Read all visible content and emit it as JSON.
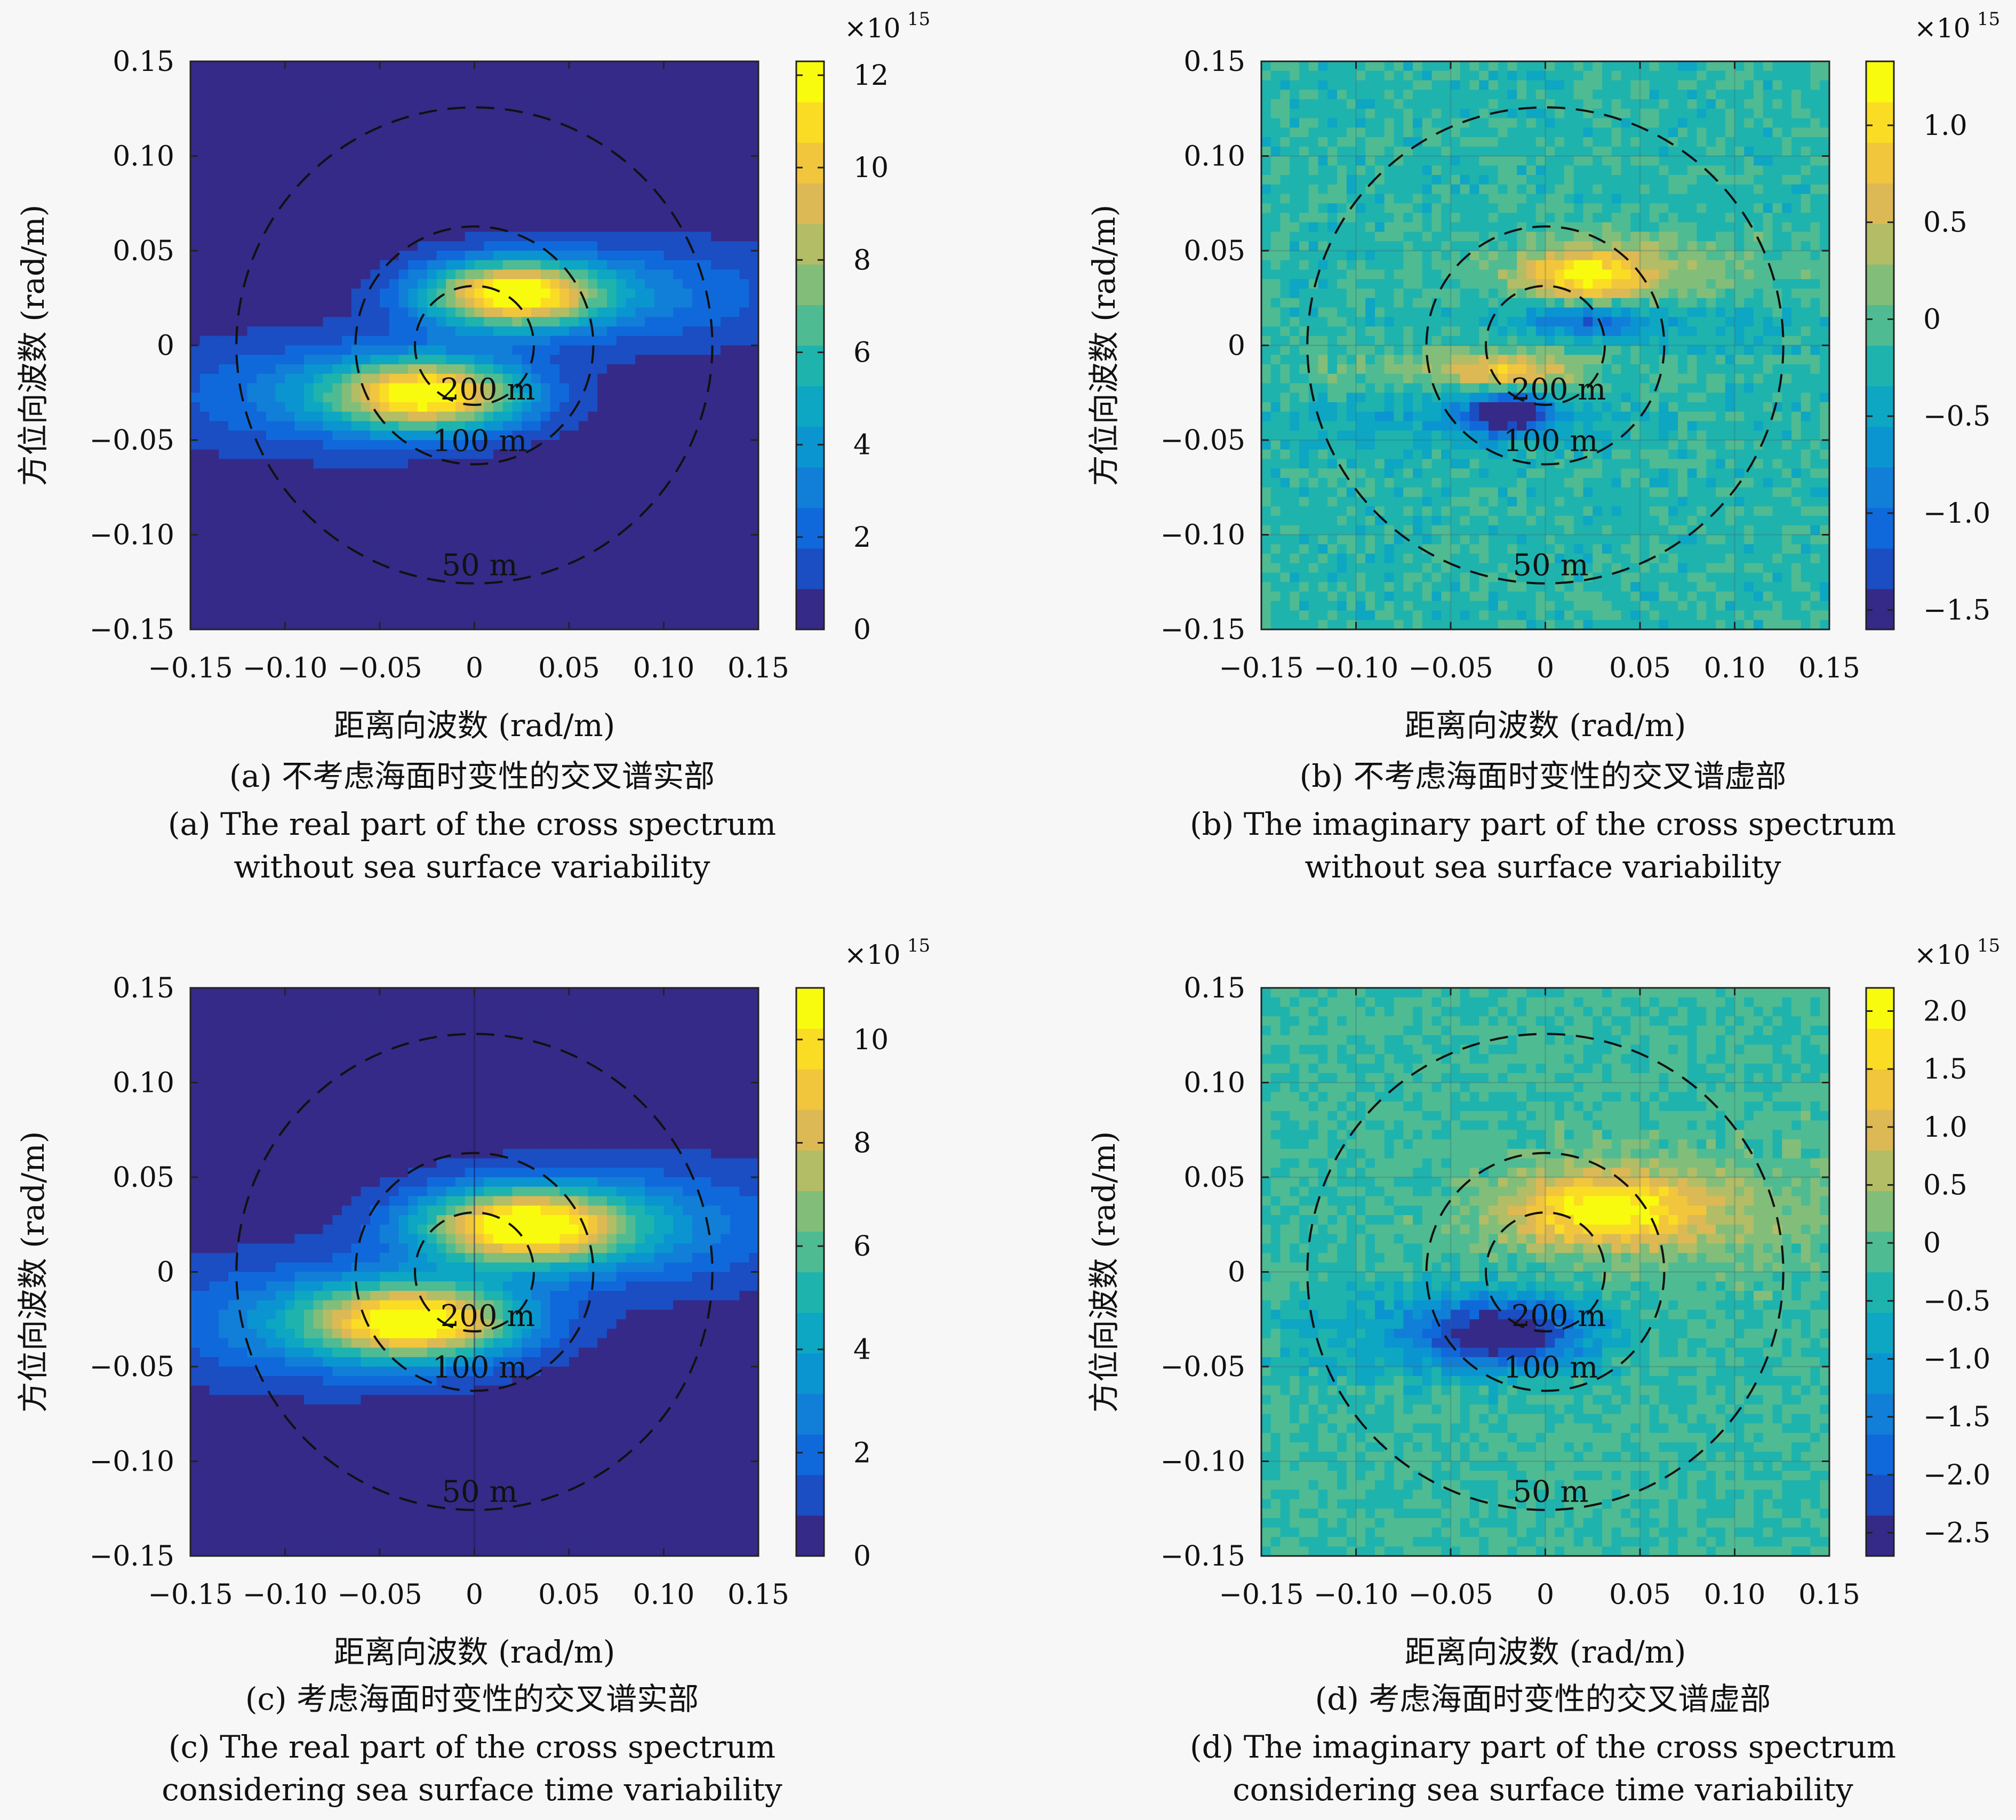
{
  "chart_data": [
    {
      "type": "heatmap",
      "id": "a",
      "xlabel": "距离向波数 (rad/m)",
      "ylabel": "方位向波数 (rad/m)",
      "xlim": [
        -0.15,
        0.15
      ],
      "ylim": [
        -0.15,
        0.15
      ],
      "xticks": [
        "−0.15",
        "−0.10",
        "−0.05",
        "0",
        "0.05",
        "0.10",
        "0.15"
      ],
      "yticks": [
        "0.15",
        "0.10",
        "0.05",
        "0",
        "−0.05",
        "−0.10",
        "−0.15"
      ],
      "colorbar": {
        "multiplier": "×10",
        "exponent": "15",
        "min": 0,
        "max": 12.3,
        "ticks": [
          "12",
          "10",
          "8",
          "6",
          "4",
          "2",
          "0"
        ],
        "tick_values": [
          12,
          10,
          8,
          6,
          4,
          2,
          0
        ]
      },
      "background_value": 0.3,
      "blobs": [
        {
          "x": 0.02,
          "y": 0.027,
          "peak": 11.5,
          "sx": 0.032,
          "sy": 0.012,
          "tail_x": 0.085,
          "tail_peak": 2.5
        },
        {
          "x": -0.024,
          "y": -0.026,
          "peak": 11.0,
          "sx": 0.035,
          "sy": 0.013,
          "tail_x": -0.085,
          "tail_peak": 2.5
        }
      ],
      "rings": [
        {
          "label": "200 m",
          "radius": 0.0314
        },
        {
          "label": "100 m",
          "radius": 0.0628
        },
        {
          "label": "50 m",
          "radius": 0.1257
        }
      ],
      "caption_cn": "(a) 不考虑海面时变性的交叉谱实部",
      "caption_en_1": "(a) The real part of the cross spectrum",
      "caption_en_2": "without sea surface variability"
    },
    {
      "type": "heatmap",
      "id": "b",
      "xlabel": "距离向波数 (rad/m)",
      "ylabel": "方位向波数 (rad/m)",
      "xlim": [
        -0.15,
        0.15
      ],
      "ylim": [
        -0.15,
        0.15
      ],
      "xticks": [
        "−0.15",
        "−0.10",
        "−0.05",
        "0",
        "0.05",
        "0.10",
        "0.15"
      ],
      "yticks": [
        "0.15",
        "0.10",
        "0.05",
        "0",
        "−0.05",
        "−0.10",
        "−0.15"
      ],
      "colorbar": {
        "multiplier": "×10",
        "exponent": "15",
        "min": -1.6,
        "max": 1.33,
        "ticks": [
          "1.0",
          "0.5",
          "0",
          "−0.5",
          "−1.0",
          "−1.5"
        ],
        "tick_values": [
          1.0,
          0.5,
          0,
          -0.5,
          -1.0,
          -1.5
        ]
      },
      "background_value": -0.2,
      "blobs": [
        {
          "x": 0.022,
          "y": 0.037,
          "peak": 1.2,
          "sx": 0.025,
          "sy": 0.01,
          "tail_x": 0.06,
          "tail_peak": 0.35
        },
        {
          "x": -0.02,
          "y": -0.014,
          "peak": 0.95,
          "sx": 0.022,
          "sy": 0.007,
          "tail_x": -0.06,
          "tail_peak": 0.3
        },
        {
          "x": -0.02,
          "y": -0.036,
          "peak": -1.5,
          "sx": 0.016,
          "sy": 0.008,
          "tail_x": -0.05,
          "tail_peak": -0.3
        },
        {
          "x": 0.02,
          "y": 0.014,
          "peak": -0.8,
          "sx": 0.02,
          "sy": 0.006,
          "tail_x": 0.05,
          "tail_peak": -0.3
        }
      ],
      "rings": [
        {
          "label": "200 m",
          "radius": 0.0314
        },
        {
          "label": "100 m",
          "radius": 0.0628
        },
        {
          "label": "50 m",
          "radius": 0.1257
        }
      ],
      "caption_cn": "(b) 不考虑海面时变性的交叉谱虚部",
      "caption_en_1": "(b) The imaginary part of the cross spectrum",
      "caption_en_2": "without sea surface variability"
    },
    {
      "type": "heatmap",
      "id": "c",
      "xlabel": "距离向波数 (rad/m)",
      "ylabel": "方位向波数 (rad/m)",
      "xlim": [
        -0.15,
        0.15
      ],
      "ylim": [
        -0.15,
        0.15
      ],
      "xticks": [
        "−0.15",
        "−0.10",
        "−0.05",
        "0",
        "0.05",
        "0.10",
        "0.15"
      ],
      "yticks": [
        "0.15",
        "0.10",
        "0.05",
        "0",
        "−0.05",
        "−0.10",
        "−0.15"
      ],
      "colorbar": {
        "multiplier": "×10",
        "exponent": "15",
        "min": 0,
        "max": 11.0,
        "ticks": [
          "10",
          "8",
          "6",
          "4",
          "2",
          "0"
        ],
        "tick_values": [
          10,
          8,
          6,
          4,
          2,
          0
        ]
      },
      "background_value": 0.3,
      "blobs": [
        {
          "x": 0.025,
          "y": 0.024,
          "peak": 10.5,
          "sx": 0.038,
          "sy": 0.014,
          "tail_x": 0.09,
          "tail_peak": 2.5
        },
        {
          "x": -0.03,
          "y": -0.026,
          "peak": 10.0,
          "sx": 0.038,
          "sy": 0.014,
          "tail_x": -0.09,
          "tail_peak": 2.5
        }
      ],
      "rings": [
        {
          "label": "200 m",
          "radius": 0.0314
        },
        {
          "label": "100 m",
          "radius": 0.0628
        },
        {
          "label": "50 m",
          "radius": 0.1257
        }
      ],
      "caption_cn": "(c) 考虑海面时变性的交叉谱实部",
      "caption_en_1": "(c) The real part of the cross spectrum",
      "caption_en_2": "considering sea surface time variability"
    },
    {
      "type": "heatmap",
      "id": "d",
      "xlabel": "距离向波数 (rad/m)",
      "ylabel": "方位向波数 (rad/m)",
      "xlim": [
        -0.15,
        0.15
      ],
      "ylim": [
        -0.15,
        0.15
      ],
      "xticks": [
        "−0.15",
        "−0.10",
        "−0.05",
        "0",
        "0.05",
        "0.10",
        "0.15"
      ],
      "yticks": [
        "0.15",
        "0.10",
        "0.05",
        "0",
        "−0.05",
        "−0.10",
        "−0.15"
      ],
      "colorbar": {
        "multiplier": "×10",
        "exponent": "15",
        "min": -2.7,
        "max": 2.2,
        "ticks": [
          "2.0",
          "1.5",
          "1.0",
          "0.5",
          "0",
          "−0.5",
          "−1.0",
          "−1.5",
          "−2.0",
          "−2.5"
        ],
        "tick_values": [
          2.0,
          1.5,
          1.0,
          0.5,
          0,
          -0.5,
          -1.0,
          -1.5,
          -2.0,
          -2.5
        ]
      },
      "background_value": -0.2,
      "blobs": [
        {
          "x": 0.03,
          "y": 0.033,
          "peak": 2.0,
          "sx": 0.035,
          "sy": 0.013,
          "tail_x": 0.07,
          "tail_peak": 0.6
        },
        {
          "x": -0.022,
          "y": -0.032,
          "peak": -2.4,
          "sx": 0.03,
          "sy": 0.012,
          "tail_x": -0.06,
          "tail_peak": -0.6
        }
      ],
      "rings": [
        {
          "label": "200 m",
          "radius": 0.0314
        },
        {
          "label": "100 m",
          "radius": 0.0628
        },
        {
          "label": "50 m",
          "radius": 0.1257
        }
      ],
      "caption_cn": "(d) 考虑海面时变性的交叉谱虚部",
      "caption_en_1": "(d) The imaginary part of the cross spectrum",
      "caption_en_2": "considering sea surface time variability"
    }
  ]
}
